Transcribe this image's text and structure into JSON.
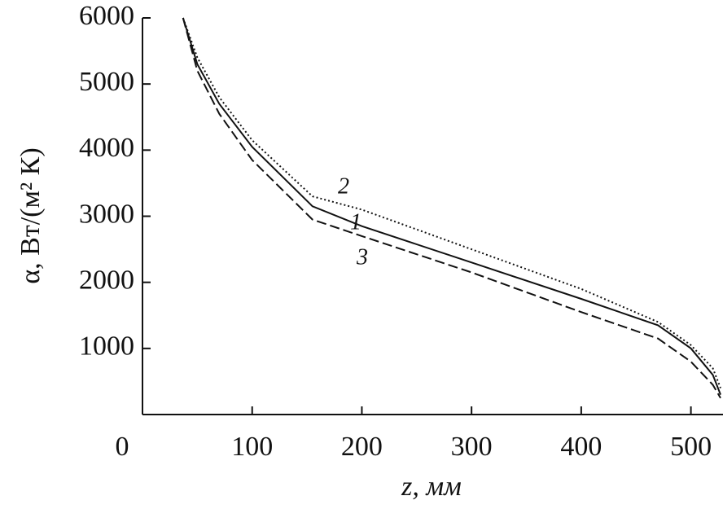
{
  "chart_data": {
    "type": "line",
    "x_label": "z, мм",
    "y_label": "α, Вт/(м² К)",
    "xlim": [
      0,
      530
    ],
    "xticks": [
      0,
      100,
      200,
      300,
      400,
      500
    ],
    "ylim": [
      0,
      6000
    ],
    "yticks": [
      1000,
      2000,
      3000,
      4000,
      5000,
      6000
    ],
    "series": [
      {
        "name": "1",
        "color": "#111111",
        "style": "solid",
        "x": [
          37,
          50,
          70,
          100,
          155,
          200,
          300,
          400,
          470,
          500,
          520,
          527
        ],
        "values": [
          6000,
          5300,
          4700,
          4050,
          3150,
          2850,
          2300,
          1750,
          1350,
          1000,
          600,
          300
        ]
      },
      {
        "name": "2",
        "color": "#111111",
        "style": "dotted",
        "x": [
          37,
          50,
          70,
          100,
          155,
          200,
          300,
          400,
          470,
          500,
          520,
          527
        ],
        "values": [
          6000,
          5400,
          4800,
          4150,
          3300,
          3100,
          2500,
          1900,
          1400,
          1050,
          700,
          400
        ]
      },
      {
        "name": "3",
        "color": "#111111",
        "style": "dashed",
        "x": [
          37,
          50,
          70,
          100,
          155,
          200,
          300,
          400,
          470,
          500,
          520,
          527
        ],
        "values": [
          6000,
          5200,
          4550,
          3850,
          2950,
          2700,
          2150,
          1550,
          1150,
          800,
          450,
          250
        ]
      }
    ]
  }
}
